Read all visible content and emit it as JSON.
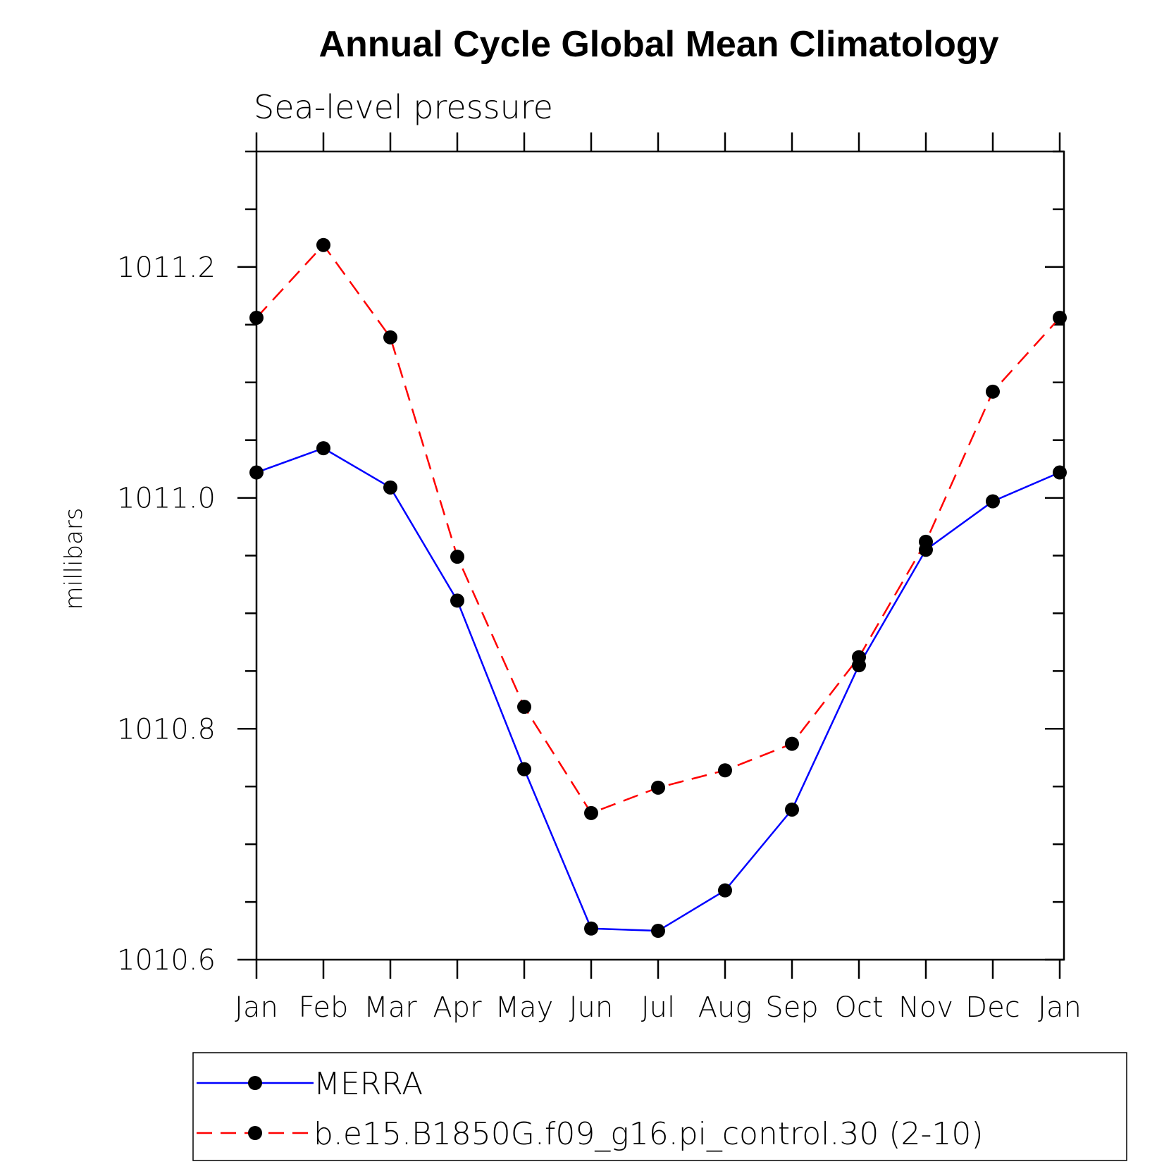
{
  "chart_data": {
    "type": "line",
    "title": "Annual Cycle Global Mean Climatology",
    "subtitle": "Sea-level pressure",
    "xlabel": "",
    "ylabel": "millibars",
    "categories": [
      "Jan",
      "Feb",
      "Mar",
      "Apr",
      "May",
      "Jun",
      "Jul",
      "Aug",
      "Sep",
      "Oct",
      "Nov",
      "Dec",
      "Jan"
    ],
    "ylim": [
      1010.6,
      1011.3
    ],
    "yticks_major": [
      1010.6,
      1010.8,
      1011.0,
      1011.2
    ],
    "ytick_labels": [
      "1010.6",
      "1010.8",
      "1011.0",
      "1011.2"
    ],
    "yticks_minor_step": 0.05,
    "grid": false,
    "legend_position": "bottom",
    "series": [
      {
        "name": "MERRA",
        "color": "#0000ff",
        "line_style": "solid",
        "marker": "filled-circle",
        "values": [
          1011.022,
          1011.043,
          1011.009,
          1010.911,
          1010.765,
          1010.627,
          1010.625,
          1010.66,
          1010.73,
          1010.855,
          1010.955,
          1010.997,
          1011.022
        ]
      },
      {
        "name": "b.e15.B1850G.f09_g16.pi_control.30 (2-10)",
        "color": "#ff0000",
        "line_style": "dashed",
        "marker": "filled-circle",
        "values": [
          1011.156,
          1011.219,
          1011.139,
          1010.949,
          1010.819,
          1010.727,
          1010.749,
          1010.764,
          1010.787,
          1010.862,
          1010.962,
          1011.092,
          1011.156
        ]
      }
    ]
  }
}
